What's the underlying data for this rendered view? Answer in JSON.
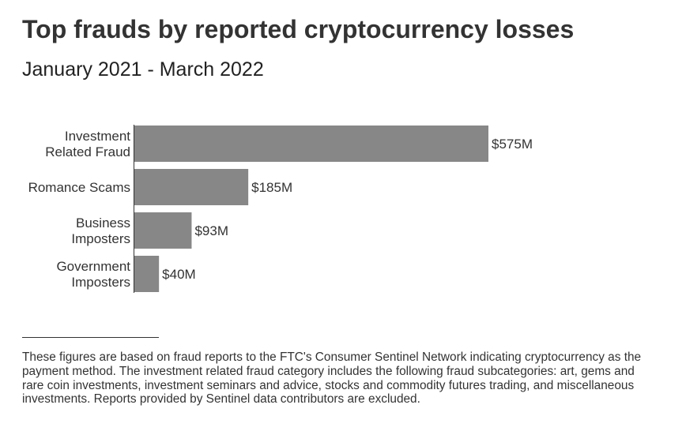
{
  "chart_data": {
    "type": "bar",
    "orientation": "horizontal",
    "title": "Top frauds by reported cryptocurrency losses",
    "subtitle": "January 2021 - March 2022",
    "categories": [
      [
        "Investment",
        "Related Fraud"
      ],
      [
        "Romance Scams"
      ],
      [
        "Business",
        "Imposters"
      ],
      [
        "Government",
        "Imposters"
      ]
    ],
    "values": [
      575,
      185,
      93,
      40
    ],
    "value_labels": [
      "$575M",
      "$185M",
      "$93M",
      "$40M"
    ],
    "unit": "$M",
    "bar_color": "#878787",
    "grid": false,
    "legend": "none"
  },
  "footnote": "These figures are based on fraud reports to the FTC's Consumer Sentinel Network indicating cryptocurrency as the payment method. The investment related fraud category includes the following fraud subcategories: art, gems and rare coin investments, investment seminars and advice, stocks and commodity futures trading, and miscellaneous investments. Reports provided by Sentinel data contributors are excluded."
}
